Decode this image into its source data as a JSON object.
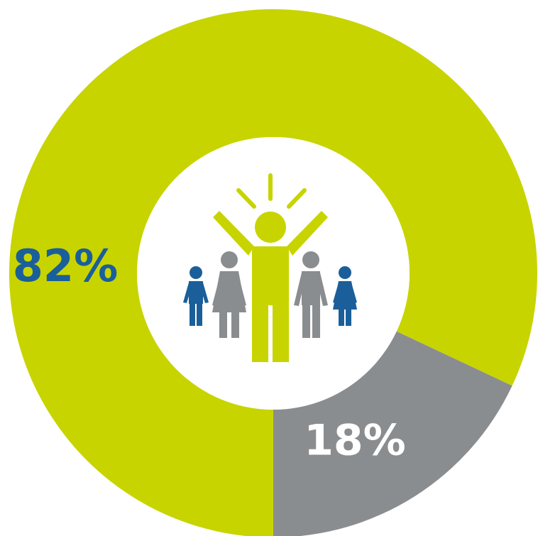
{
  "chart_data": {
    "type": "pie",
    "slices": [
      {
        "label": "82%",
        "value": 82,
        "color": "#c8d400"
      },
      {
        "label": "18%",
        "value": 18,
        "color": "#8a8d8f"
      }
    ],
    "label_colors": [
      "#1a5f9a",
      "#ffffff"
    ],
    "donut": true
  },
  "center_icon": {
    "name": "people-group-celebrating-icon",
    "colors": {
      "main": "#c8d400",
      "adults": "#8a8d8f",
      "children": "#1a5f9a"
    }
  }
}
